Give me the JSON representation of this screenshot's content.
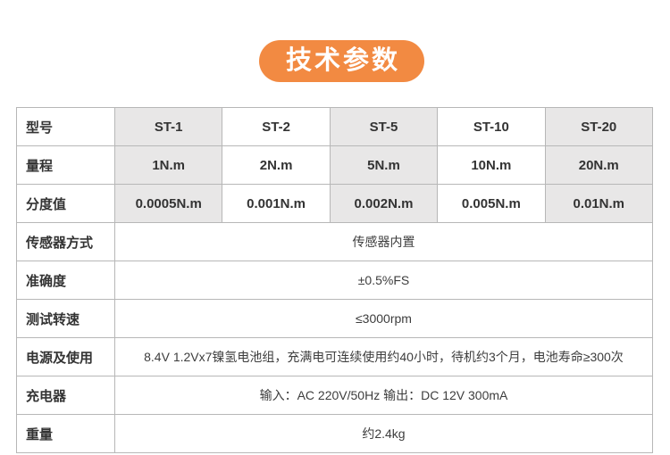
{
  "banner": {
    "title": "技术参数",
    "bg_color": "#f28a42",
    "text_color": "#ffffff"
  },
  "table": {
    "border_color": "#b7b7b7",
    "shaded_column_color": "#e8e7e7",
    "rows": [
      {
        "label": "型号",
        "cells": [
          "ST-1",
          "ST-2",
          "ST-5",
          "ST-10",
          "ST-20"
        ]
      },
      {
        "label": "量程",
        "cells": [
          "1N.m",
          "2N.m",
          "5N.m",
          "10N.m",
          "20N.m"
        ]
      },
      {
        "label": "分度值",
        "cells": [
          "0.0005N.m",
          "0.001N.m",
          "0.002N.m",
          "0.005N.m",
          "0.01N.m"
        ]
      },
      {
        "label": "传感器方式",
        "value": "传感器内置"
      },
      {
        "label": "准确度",
        "value": "±0.5%FS"
      },
      {
        "label": "测试转速",
        "value": "≤3000rpm"
      },
      {
        "label": "电源及使用",
        "value": "8.4V 1.2Vx7镍氢电池组，充满电可连续使用约40小时，待机约3个月，电池寿命≥300次"
      },
      {
        "label": "充电器",
        "value": "输入：AC 220V/50Hz 输出：DC 12V 300mA"
      },
      {
        "label": "重量",
        "value": "约2.4kg"
      }
    ]
  }
}
